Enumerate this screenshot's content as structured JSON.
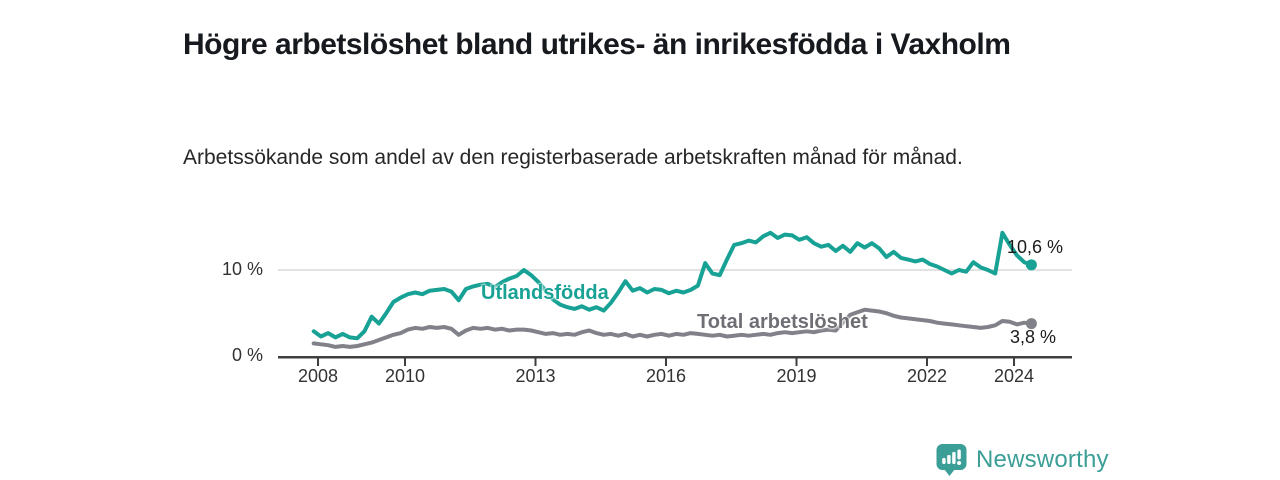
{
  "chart_data": {
    "type": "line",
    "title": "Högre arbetslöshet bland utrikes- än inrikesfödda i Vaxholm",
    "subtitle": "Arbetssökande som andel av den registerbaserade arbetskraften månad för månad.",
    "x_start": 2007.9,
    "x_step_years": 0.1666667,
    "x_ticks": [
      2008,
      2010,
      2013,
      2016,
      2019,
      2022,
      2024
    ],
    "y_ticks": [
      {
        "value": 10,
        "label": "10 %"
      },
      {
        "value": 0,
        "label": "0 %"
      }
    ],
    "ylim": [
      0,
      15.5
    ],
    "grid": "horizontal gridline at 10% only",
    "legend_position": "labels inline on lines",
    "series": [
      {
        "name": "Utlandsfödda",
        "color": "#18a295",
        "end_value": 10.6,
        "end_label": "10,6 %",
        "values": [
          2.9,
          2.3,
          2.7,
          2.2,
          2.6,
          2.2,
          2.1,
          2.9,
          4.6,
          3.8,
          5.0,
          6.3,
          6.8,
          7.2,
          7.4,
          7.2,
          7.6,
          7.7,
          7.8,
          7.5,
          6.5,
          7.8,
          8.1,
          8.3,
          8.4,
          8.0,
          8.6,
          9.0,
          9.3,
          10.0,
          9.4,
          8.6,
          7.6,
          6.6,
          6.0,
          5.7,
          5.5,
          5.8,
          5.4,
          5.7,
          5.3,
          6.2,
          7.4,
          8.7,
          7.6,
          7.9,
          7.4,
          7.8,
          7.7,
          7.3,
          7.6,
          7.4,
          7.7,
          8.2,
          10.8,
          9.6,
          9.4,
          11.2,
          12.9,
          13.1,
          13.4,
          13.2,
          13.9,
          14.3,
          13.7,
          14.1,
          14.0,
          13.5,
          13.8,
          13.1,
          12.7,
          12.9,
          12.2,
          12.8,
          12.1,
          13.1,
          12.6,
          13.1,
          12.5,
          11.5,
          12.1,
          11.4,
          11.2,
          11.0,
          11.2,
          10.7,
          10.4,
          10.0,
          9.6,
          10.0,
          9.8,
          10.9,
          10.3,
          10.0,
          9.6,
          14.3,
          12.9,
          11.7,
          10.9,
          10.6
        ]
      },
      {
        "name": "Total arbetslöshet",
        "color": "#81818a",
        "end_value": 3.8,
        "end_label": "3,8 %",
        "values": [
          1.5,
          1.4,
          1.3,
          1.1,
          1.2,
          1.1,
          1.2,
          1.4,
          1.6,
          1.9,
          2.2,
          2.5,
          2.7,
          3.1,
          3.3,
          3.2,
          3.4,
          3.3,
          3.4,
          3.2,
          2.5,
          3.0,
          3.3,
          3.2,
          3.3,
          3.1,
          3.2,
          3.0,
          3.1,
          3.1,
          3.0,
          2.8,
          2.6,
          2.7,
          2.5,
          2.6,
          2.5,
          2.8,
          3.0,
          2.7,
          2.5,
          2.6,
          2.4,
          2.6,
          2.3,
          2.5,
          2.3,
          2.5,
          2.6,
          2.4,
          2.6,
          2.5,
          2.7,
          2.6,
          2.5,
          2.4,
          2.5,
          2.3,
          2.4,
          2.5,
          2.4,
          2.5,
          2.6,
          2.5,
          2.7,
          2.8,
          2.7,
          2.8,
          2.9,
          2.8,
          3.0,
          3.1,
          3.0,
          3.9,
          4.8,
          5.1,
          5.4,
          5.3,
          5.2,
          5.0,
          4.7,
          4.5,
          4.4,
          4.3,
          4.2,
          4.1,
          3.9,
          3.8,
          3.7,
          3.6,
          3.5,
          3.4,
          3.3,
          3.4,
          3.6,
          4.1,
          4.0,
          3.7,
          3.9,
          3.8
        ]
      }
    ]
  },
  "colors": {
    "accent_teal": "#18a295",
    "line_gray": "#81818a",
    "axis": "#3f3f3f",
    "gridline": "#d9d9d9",
    "brand_teal": "#3b9e97"
  },
  "footer": {
    "brand": "Newsworthy",
    "logo_icon": "speech-bubble-bar-chart-icon"
  }
}
